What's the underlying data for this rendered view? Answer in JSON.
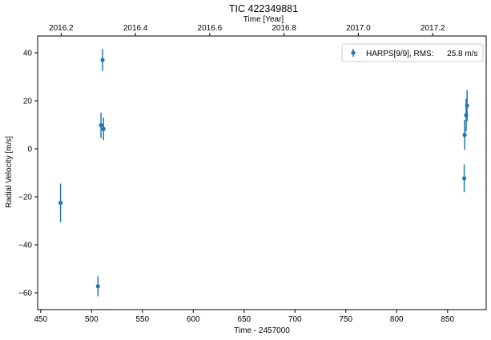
{
  "chart_data": {
    "type": "scatter",
    "title": "TIC 422349881",
    "xlabel": "Time - 2457000",
    "ylabel": "Radial Velocity [m/s]",
    "top_xlabel": "Time [Year]",
    "xlim": [
      447,
      888
    ],
    "ylim": [
      -67,
      47
    ],
    "xticks": [
      450,
      500,
      550,
      600,
      650,
      700,
      750,
      800,
      850
    ],
    "yticks": [
      -60,
      -40,
      -20,
      0,
      20,
      40
    ],
    "top_ticks": [
      {
        "label": "2016.2",
        "x": 470.1
      },
      {
        "label": "2016.4",
        "x": 543.2
      },
      {
        "label": "2016.6",
        "x": 616.2
      },
      {
        "label": "2016.8",
        "x": 689.3
      },
      {
        "label": "2017.0",
        "x": 762.3
      },
      {
        "label": "2017.2",
        "x": 835.4
      }
    ],
    "grid": false,
    "legend_position": "top-right",
    "series": [
      {
        "name": "HARPS[9/9], RMS:      25.8 m/s",
        "color": "#1f77b4",
        "x": [
          469.5,
          506.3,
          509.3,
          510.8,
          511.8,
          866.4,
          866.8,
          868.3,
          869.2
        ],
        "y": [
          -22.5,
          -57.3,
          9.8,
          37.0,
          8.3,
          -12.3,
          5.8,
          14.0,
          18.0
        ],
        "yerr": [
          8.0,
          4.2,
          5.3,
          4.6,
          4.7,
          5.8,
          6.2,
          6.8,
          6.5
        ]
      }
    ]
  }
}
